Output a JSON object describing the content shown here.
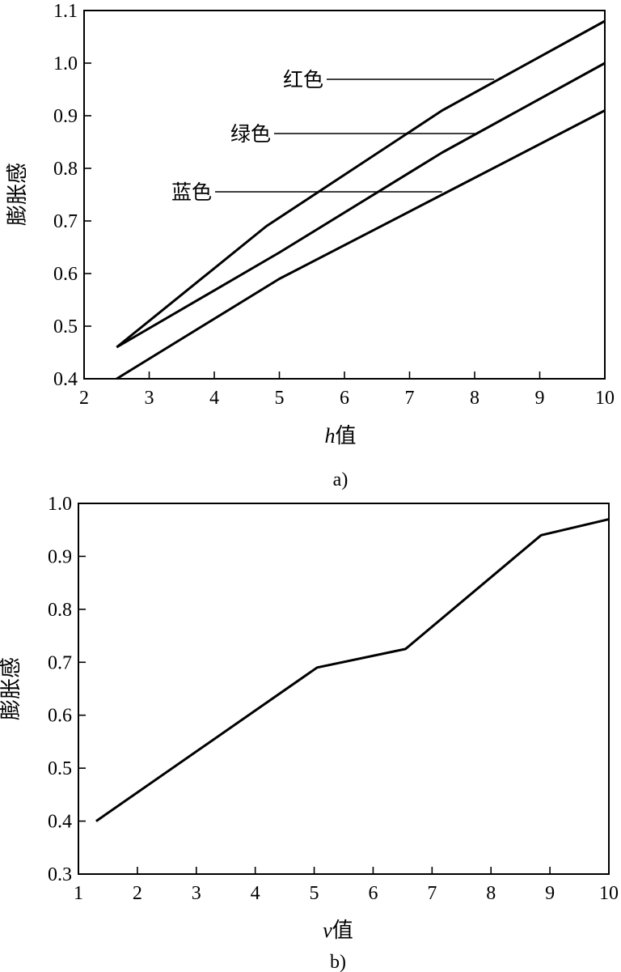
{
  "chart_data": [
    {
      "type": "line",
      "caption": "a)",
      "ylabel": "膨胀感",
      "xlabel_var": "h",
      "xlabel_suffix": "值",
      "xlim": [
        2,
        10
      ],
      "ylim": [
        0.4,
        1.1
      ],
      "xticks": [
        "2",
        "3",
        "4",
        "5",
        "6",
        "7",
        "8",
        "9",
        "10"
      ],
      "yticks": [
        "0.4",
        "0.5",
        "0.6",
        "0.7",
        "0.8",
        "0.9",
        "1.0",
        "1.1"
      ],
      "series": [
        {
          "name": "红色",
          "x": [
            2.5,
            4.8,
            7.5,
            10
          ],
          "y": [
            0.46,
            0.69,
            0.91,
            1.08
          ]
        },
        {
          "name": "绿色",
          "x": [
            2.5,
            5.0,
            7.5,
            10
          ],
          "y": [
            0.46,
            0.64,
            0.83,
            1.0
          ]
        },
        {
          "name": "蓝色",
          "x": [
            2.5,
            5.0,
            7.5,
            10
          ],
          "y": [
            0.4,
            0.59,
            0.75,
            0.91
          ]
        }
      ],
      "annotation_points": [
        {
          "series": 0,
          "x": 8.3,
          "y": 0.956
        },
        {
          "series": 1,
          "x": 8.0,
          "y": 0.862
        },
        {
          "series": 2,
          "x": 7.5,
          "y": 0.75
        }
      ]
    },
    {
      "type": "line",
      "caption": "b)",
      "ylabel": "膨胀感",
      "xlabel_var": "v",
      "xlabel_suffix": "值",
      "xlim": [
        1,
        10
      ],
      "ylim": [
        0.3,
        1.0
      ],
      "xticks": [
        "1",
        "2",
        "3",
        "4",
        "5",
        "6",
        "7",
        "8",
        "9",
        "10"
      ],
      "yticks": [
        "0.3",
        "0.4",
        "0.5",
        "0.6",
        "0.7",
        "0.8",
        "0.9",
        "1.0"
      ],
      "series": [
        {
          "x": [
            1.3,
            5.05,
            6.55,
            8.85,
            10
          ],
          "y": [
            0.4,
            0.69,
            0.725,
            0.94,
            0.97
          ]
        }
      ]
    }
  ]
}
